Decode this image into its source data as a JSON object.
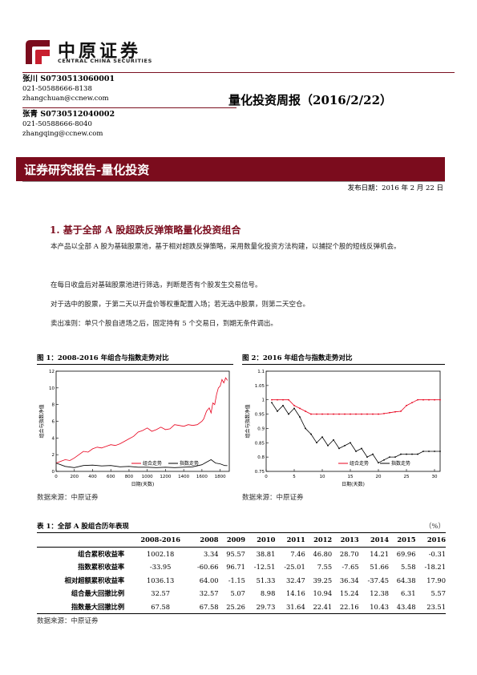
{
  "header": {
    "logo_cn": "中原证券",
    "logo_en": "CENTRAL CHINA SECURITIES"
  },
  "analysts": [
    {
      "name_id": "张川 S0730513060001",
      "phone": "021-50588666-8138",
      "email": "zhangchuan@ccnew.com"
    },
    {
      "name_id": "张青 S0730512040002",
      "phone": "021-50588666-8040",
      "email": "zhangqing@ccnew.com"
    }
  ],
  "report_title": "量化投资周报（2016/2/22）",
  "banner": "证券研究报告-量化投资",
  "publish_date": "发布日期：2016 年 2 月 22 日",
  "section": {
    "title": "1. 基于全部 A 股超跌反弹策略量化投资组合",
    "paragraphs": [
      "本产品以全部 A 股为基础股票池，基于相对超跌反弹策略，采用数量化投资方法构建，以捕捉个股的短线反弹机会。",
      "在每日收盘后对基础股票池进行筛选，判断是否有个股发生交易信号。",
      "对于选中的股票，于第二天以开盘价等权重配置入场；若无选中股票，则第二天空仓。",
      "卖出准则：单只个股自进场之后，固定持有 5 个交易日，到期无条件调出。"
    ]
  },
  "figure1": {
    "caption": "图 1：2008-2016 年组合与指数走势对比",
    "source": "数据来源：中原证券"
  },
  "figure2": {
    "caption": "图 2：2016 年组合与指数走势对比",
    "source": "数据来源：中原证券"
  },
  "chart_data": [
    {
      "type": "line",
      "ylabel": "组合与指数净值",
      "xlabel": "日期(天数)",
      "xlim": [
        0,
        1900
      ],
      "ylim": [
        0,
        12
      ],
      "xticks": [
        "0",
        "200",
        "400",
        "600",
        "800",
        "1000",
        "1200",
        "1400",
        "1600",
        "1800"
      ],
      "yticks": [
        "0",
        "2",
        "4",
        "6",
        "8",
        "10",
        "12"
      ],
      "legend": [
        "组合走势",
        "指数走势"
      ],
      "series": [
        {
          "name": "组合走势",
          "color": "#e8001c",
          "x": [
            0,
            50,
            100,
            150,
            200,
            250,
            300,
            350,
            400,
            450,
            500,
            550,
            600,
            650,
            700,
            750,
            800,
            850,
            900,
            950,
            1000,
            1050,
            1100,
            1150,
            1200,
            1250,
            1300,
            1350,
            1400,
            1450,
            1500,
            1550,
            1600,
            1620,
            1650,
            1680,
            1700,
            1720,
            1740,
            1760,
            1780,
            1800,
            1820,
            1840,
            1860,
            1880
          ],
          "y": [
            1.0,
            1.2,
            1.4,
            1.3,
            1.6,
            2.0,
            2.4,
            2.3,
            2.7,
            2.9,
            2.8,
            3.0,
            3.2,
            3.1,
            3.3,
            3.6,
            3.9,
            4.2,
            4.7,
            4.9,
            5.2,
            4.8,
            5.0,
            5.3,
            5.0,
            5.1,
            5.6,
            5.5,
            5.4,
            5.6,
            5.5,
            5.6,
            6.0,
            6.3,
            7.2,
            7.6,
            7.0,
            8.2,
            8.0,
            9.2,
            10.0,
            10.2,
            11.0,
            10.6,
            11.2,
            10.9
          ]
        },
        {
          "name": "指数走势",
          "color": "#000000",
          "x": [
            0,
            100,
            200,
            300,
            400,
            500,
            600,
            700,
            800,
            900,
            1000,
            1100,
            1200,
            1300,
            1400,
            1500,
            1600,
            1650,
            1700,
            1750,
            1800,
            1850,
            1880
          ],
          "y": [
            1.0,
            0.6,
            0.45,
            0.7,
            0.75,
            0.65,
            0.7,
            0.55,
            0.6,
            0.5,
            0.5,
            0.45,
            0.5,
            0.45,
            0.5,
            0.55,
            0.8,
            1.1,
            1.4,
            1.0,
            0.9,
            0.7,
            0.68
          ]
        }
      ]
    },
    {
      "type": "line",
      "ylabel": "组合与指数净值",
      "xlabel": "日期(天数)",
      "xlim": [
        0,
        31
      ],
      "ylim": [
        0.75,
        1.1
      ],
      "xticks": [
        "0",
        "5",
        "10",
        "15",
        "20",
        "25",
        "30"
      ],
      "yticks": [
        "0.75",
        "0.8",
        "0.85",
        "0.9",
        "0.95",
        "1",
        "1.05",
        "1.1"
      ],
      "legend": [
        "组合走势",
        "指数走势"
      ],
      "series": [
        {
          "name": "组合走势",
          "color": "#e8001c",
          "x": [
            1,
            2,
            3,
            4,
            5,
            6,
            7,
            8,
            9,
            10,
            11,
            12,
            13,
            14,
            15,
            16,
            17,
            18,
            19,
            20,
            21,
            22,
            23,
            24,
            25,
            26,
            27,
            28,
            29,
            30,
            31
          ],
          "y": [
            1.0,
            1.0,
            1.0,
            1.0,
            0.98,
            0.97,
            0.96,
            0.95,
            0.95,
            0.95,
            0.95,
            0.95,
            0.95,
            0.95,
            0.95,
            0.95,
            0.95,
            0.95,
            0.95,
            0.95,
            0.952,
            0.955,
            0.958,
            0.96,
            0.98,
            0.99,
            1.0,
            1.0,
            1.0,
            1.0,
            1.0
          ]
        },
        {
          "name": "指数走势",
          "color": "#000000",
          "x": [
            1,
            2,
            3,
            4,
            5,
            6,
            7,
            8,
            9,
            10,
            11,
            12,
            13,
            14,
            15,
            16,
            17,
            18,
            19,
            20,
            21,
            22,
            23,
            24,
            25,
            26,
            27,
            28,
            29,
            30,
            31
          ],
          "y": [
            0.99,
            0.96,
            0.98,
            0.95,
            0.97,
            0.94,
            0.9,
            0.88,
            0.85,
            0.87,
            0.84,
            0.86,
            0.83,
            0.84,
            0.85,
            0.82,
            0.83,
            0.8,
            0.81,
            0.78,
            0.79,
            0.8,
            0.8,
            0.81,
            0.81,
            0.81,
            0.81,
            0.82,
            0.82,
            0.82,
            0.82
          ]
        }
      ]
    }
  ],
  "table": {
    "caption": "表 1：全部 A 股组合历年表现",
    "unit": "（%）",
    "headers": [
      "",
      "2008-2016",
      "2008",
      "2009",
      "2010",
      "2011",
      "2012",
      "2013",
      "2014",
      "2015",
      "2016"
    ],
    "rows": [
      {
        "label": "组合累积收益率",
        "values": [
          "1002.18",
          "3.34",
          "95.57",
          "38.81",
          "7.46",
          "46.80",
          "28.70",
          "14.21",
          "69.96",
          "-0.31"
        ]
      },
      {
        "label": "指数累积收益率",
        "values": [
          "-33.95",
          "-60.66",
          "96.71",
          "-12.51",
          "-25.01",
          "7.55",
          "-7.65",
          "51.66",
          "5.58",
          "-18.21"
        ]
      },
      {
        "label": "相对超额累积收益率",
        "values": [
          "1036.13",
          "64.00",
          "-1.15",
          "51.33",
          "32.47",
          "39.25",
          "36.34",
          "-37.45",
          "64.38",
          "17.90"
        ]
      },
      {
        "label": "组合最大回撤比例",
        "values": [
          "32.57",
          "32.57",
          "5.07",
          "8.98",
          "14.16",
          "10.94",
          "15.24",
          "12.38",
          "6.31",
          "5.57"
        ]
      },
      {
        "label": "指数最大回撤比例",
        "values": [
          "67.58",
          "67.58",
          "25.26",
          "29.73",
          "31.64",
          "22.41",
          "22.16",
          "10.43",
          "43.48",
          "23.51"
        ]
      }
    ],
    "source": "数据来源：中原证券"
  }
}
